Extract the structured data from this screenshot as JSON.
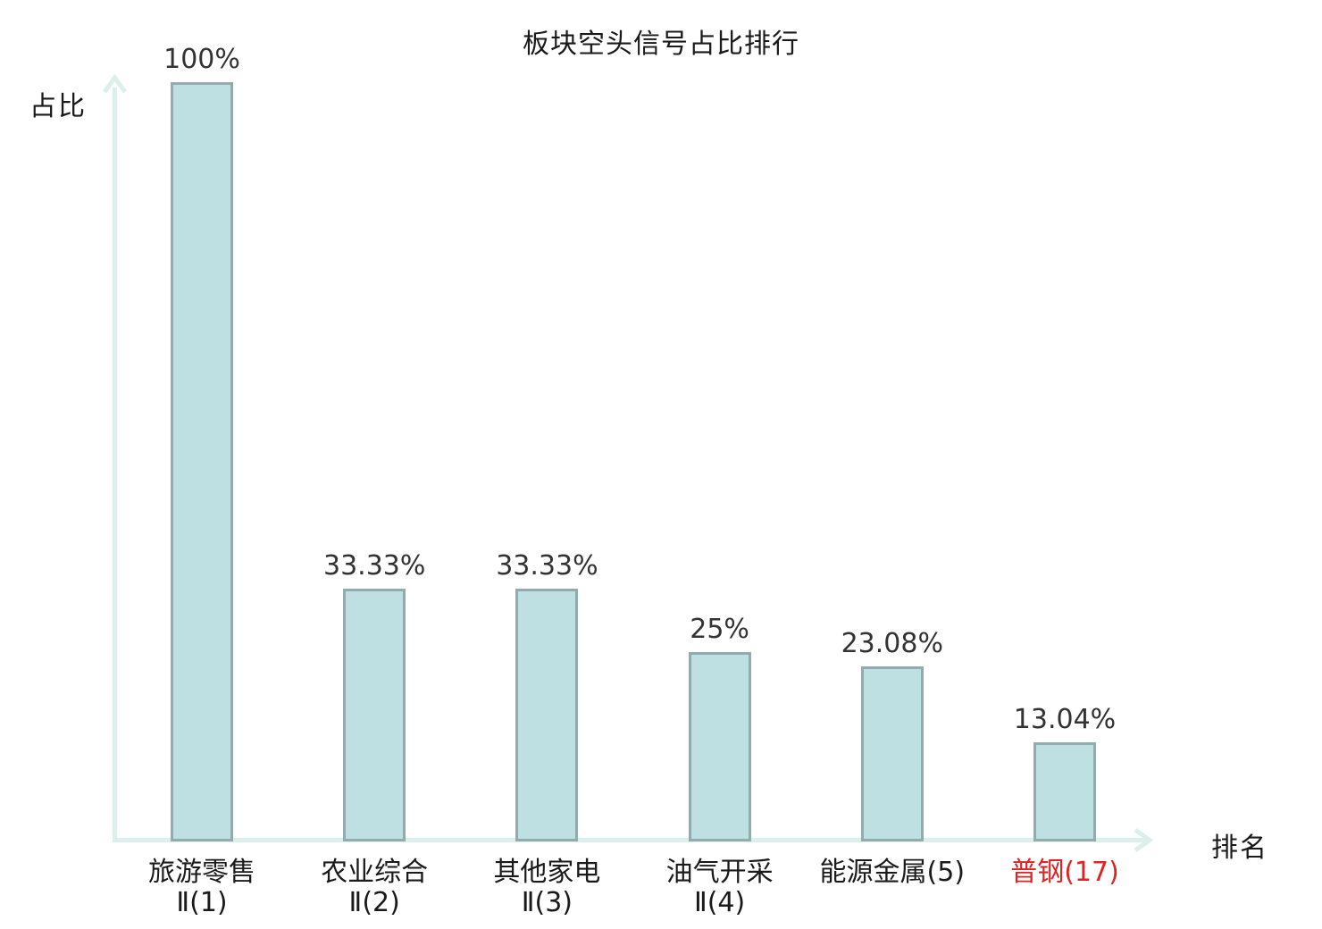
{
  "title": "板块空头信号占比排行",
  "axes": {
    "y_label": "占比",
    "x_label": "排名"
  },
  "colors": {
    "bar_fill": "#bfe0e2",
    "bar_border": "#92abad",
    "axis": "#dcefec",
    "value_label": "#333333",
    "category_label": "#1a1a1a",
    "highlight_label": "#e02222",
    "title": "#1a1a1a"
  },
  "chart_data": {
    "type": "bar",
    "title": "板块空头信号占比排行",
    "xlabel": "排名",
    "ylabel": "占比",
    "ylim": [
      0,
      100
    ],
    "grid": false,
    "legend": false,
    "categories": [
      "旅游零售Ⅱ(1)",
      "农业综合Ⅱ(2)",
      "其他家电Ⅱ(3)",
      "油气开采Ⅱ(4)",
      "能源金属(5)",
      "普钢(17)"
    ],
    "values": [
      100,
      33.33,
      33.33,
      25,
      23.08,
      13.04
    ],
    "points": [
      {
        "label_line1": "旅游零售",
        "label_line2": "Ⅱ(1)",
        "value": 100,
        "value_label": "100%",
        "highlight": false
      },
      {
        "label_line1": "农业综合",
        "label_line2": "Ⅱ(2)",
        "value": 33.33,
        "value_label": "33.33%",
        "highlight": false
      },
      {
        "label_line1": "其他家电",
        "label_line2": "Ⅱ(3)",
        "value": 33.33,
        "value_label": "33.33%",
        "highlight": false
      },
      {
        "label_line1": "油气开采",
        "label_line2": "Ⅱ(4)",
        "value": 25,
        "value_label": "25%",
        "highlight": false
      },
      {
        "label_line1": "能源金属(5)",
        "label_line2": "",
        "value": 23.08,
        "value_label": "23.08%",
        "highlight": false
      },
      {
        "label_line1": "普钢(17)",
        "label_line2": "",
        "value": 13.04,
        "value_label": "13.04%",
        "highlight": true
      }
    ]
  }
}
